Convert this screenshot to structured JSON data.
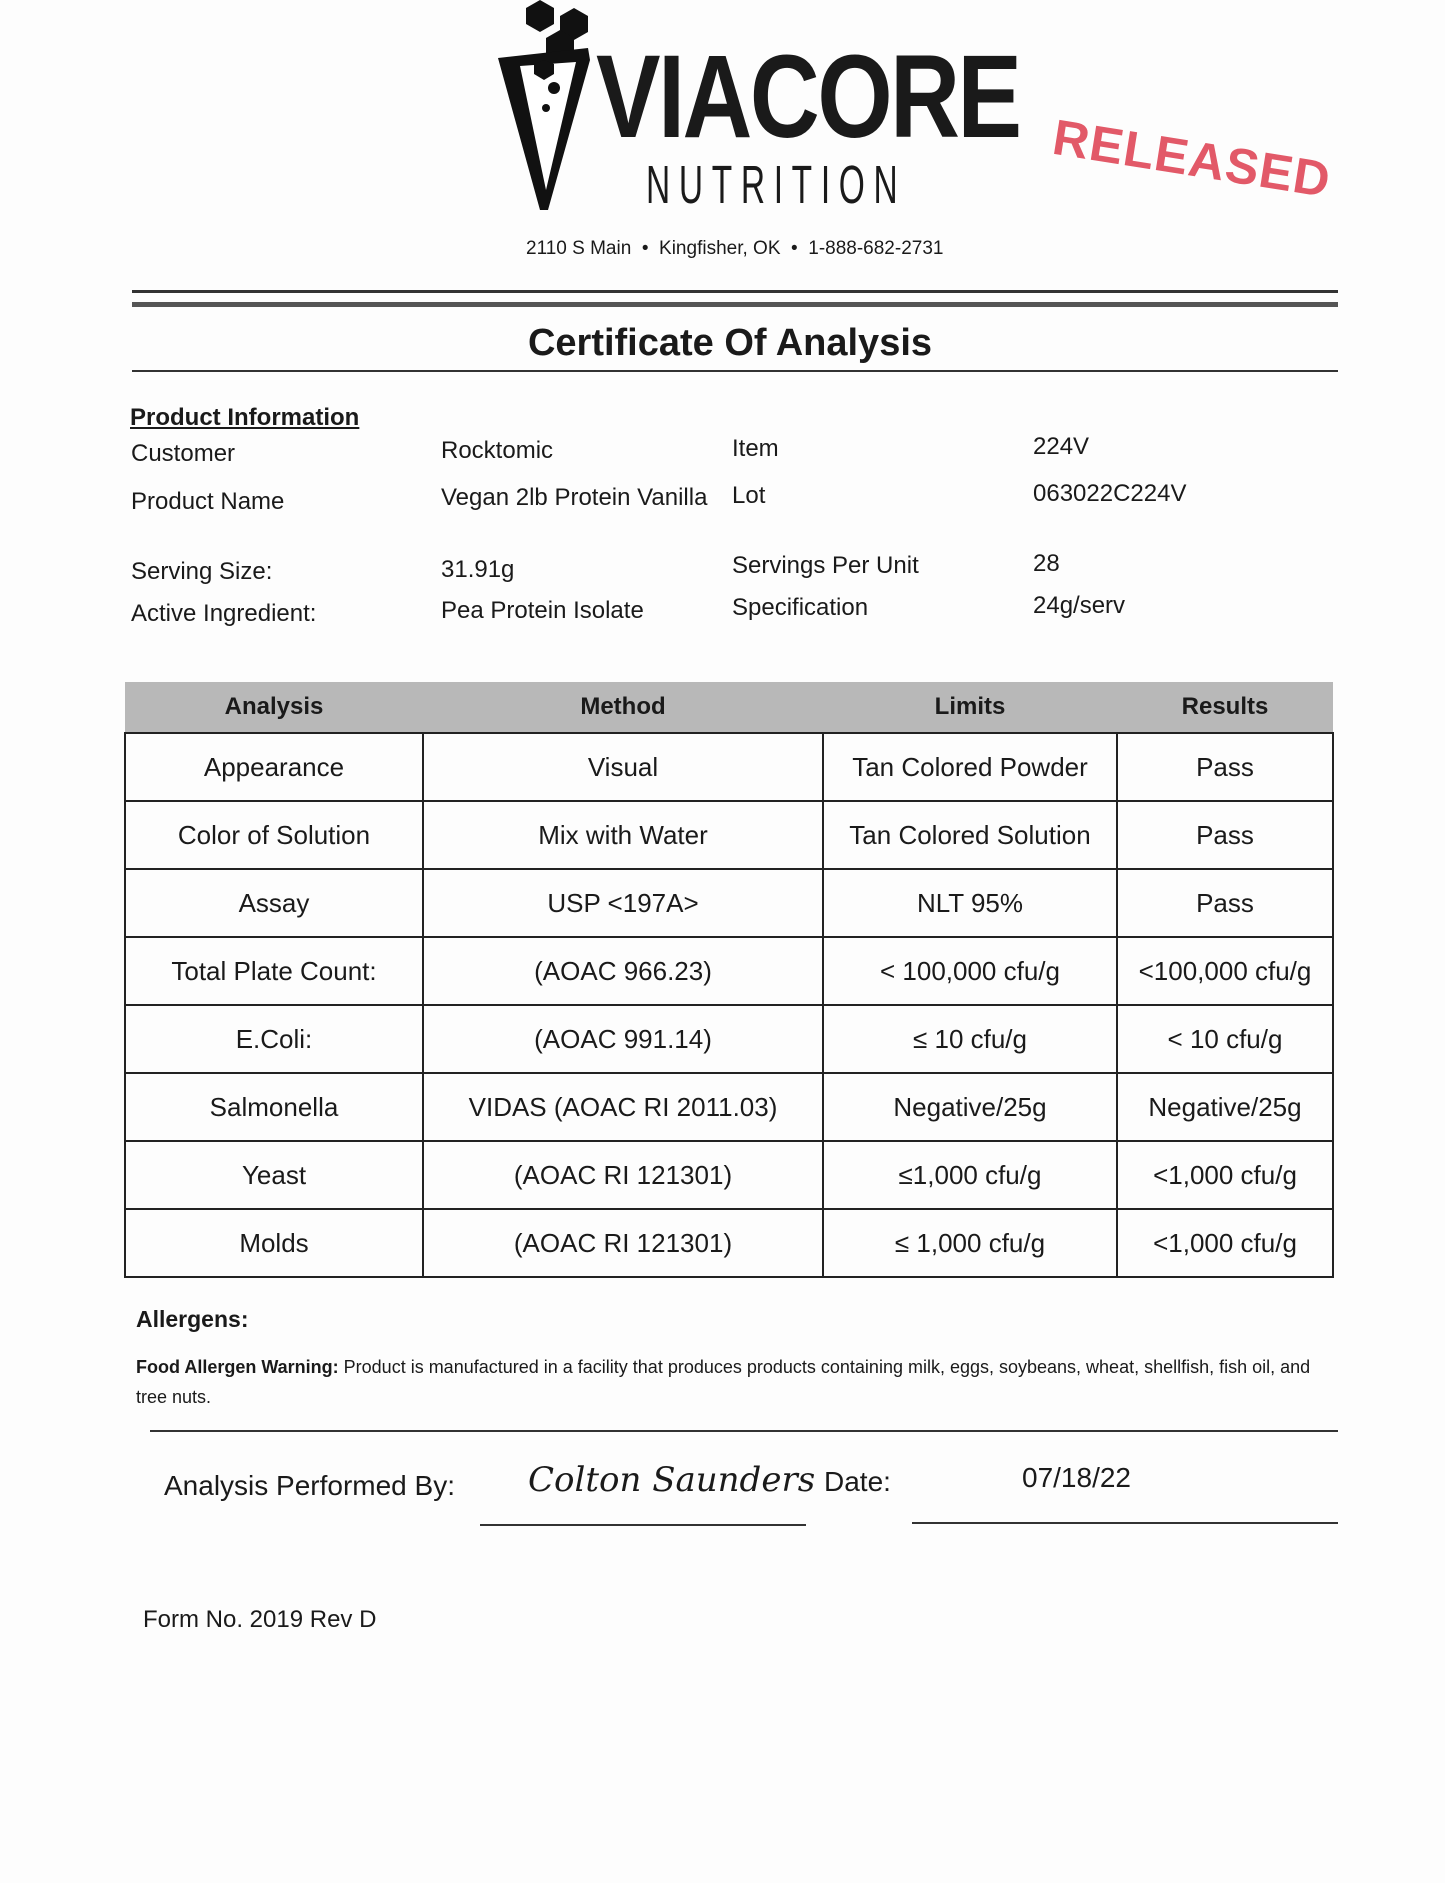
{
  "header": {
    "logo_text": "VIACORE",
    "logo_subtext": "NUTRITION",
    "address": "2110 S Main  •  Kingfisher, OK  •  1-888-682-2731",
    "stamp": "RELEASED"
  },
  "title": "Certificate Of Analysis",
  "product_info": {
    "heading": "Product Information",
    "rows": [
      {
        "l1": "Customer",
        "v1": "Rocktomic",
        "l2": "Item",
        "v2": "224V"
      },
      {
        "l1": "Product Name",
        "v1": "Vegan 2lb Protein Vanilla",
        "l2": "Lot",
        "v2": "063022C224V"
      },
      {
        "l1": "Serving Size:",
        "v1": "31.91g",
        "l2": "Servings Per Unit",
        "v2": "28"
      },
      {
        "l1": "Active Ingredient:",
        "v1": "Pea Protein Isolate",
        "l2": "Specification",
        "v2": "24g/serv"
      }
    ]
  },
  "table": {
    "headers": [
      "Analysis",
      "Method",
      "Limits",
      "Results"
    ],
    "rows": [
      [
        "Appearance",
        "Visual",
        "Tan Colored Powder",
        "Pass"
      ],
      [
        "Color of Solution",
        "Mix with Water",
        "Tan Colored Solution",
        "Pass"
      ],
      [
        "Assay",
        "USP <197A>",
        "NLT 95%",
        "Pass"
      ],
      [
        "Total Plate Count:",
        "(AOAC 966.23)",
        "< 100,000 cfu/g",
        "<100,000 cfu/g"
      ],
      [
        "E.Coli:",
        "(AOAC 991.14)",
        "≤ 10 cfu/g",
        "< 10 cfu/g"
      ],
      [
        "Salmonella",
        "VIDAS (AOAC RI 2011.03)",
        "Negative/25g",
        "Negative/25g"
      ],
      [
        "Yeast",
        "(AOAC RI 121301)",
        "≤1,000 cfu/g",
        "<1,000 cfu/g"
      ],
      [
        "Molds",
        "(AOAC RI 121301)",
        "≤ 1,000 cfu/g",
        "<1,000  cfu/g"
      ]
    ]
  },
  "allergens": {
    "heading": "Allergens:",
    "warning_label": "Food Allergen Warning:",
    "warning_text": " Product is manufactured in a facility that produces products containing milk, eggs, soybeans, wheat, shellfish, fish oil, and tree nuts."
  },
  "signoff": {
    "performed_label": "Analysis Performed By:",
    "signature": "Colton Saunders",
    "date_label": "Date:",
    "date": "07/18/22"
  },
  "form_no": "Form No. 2019 Rev D"
}
